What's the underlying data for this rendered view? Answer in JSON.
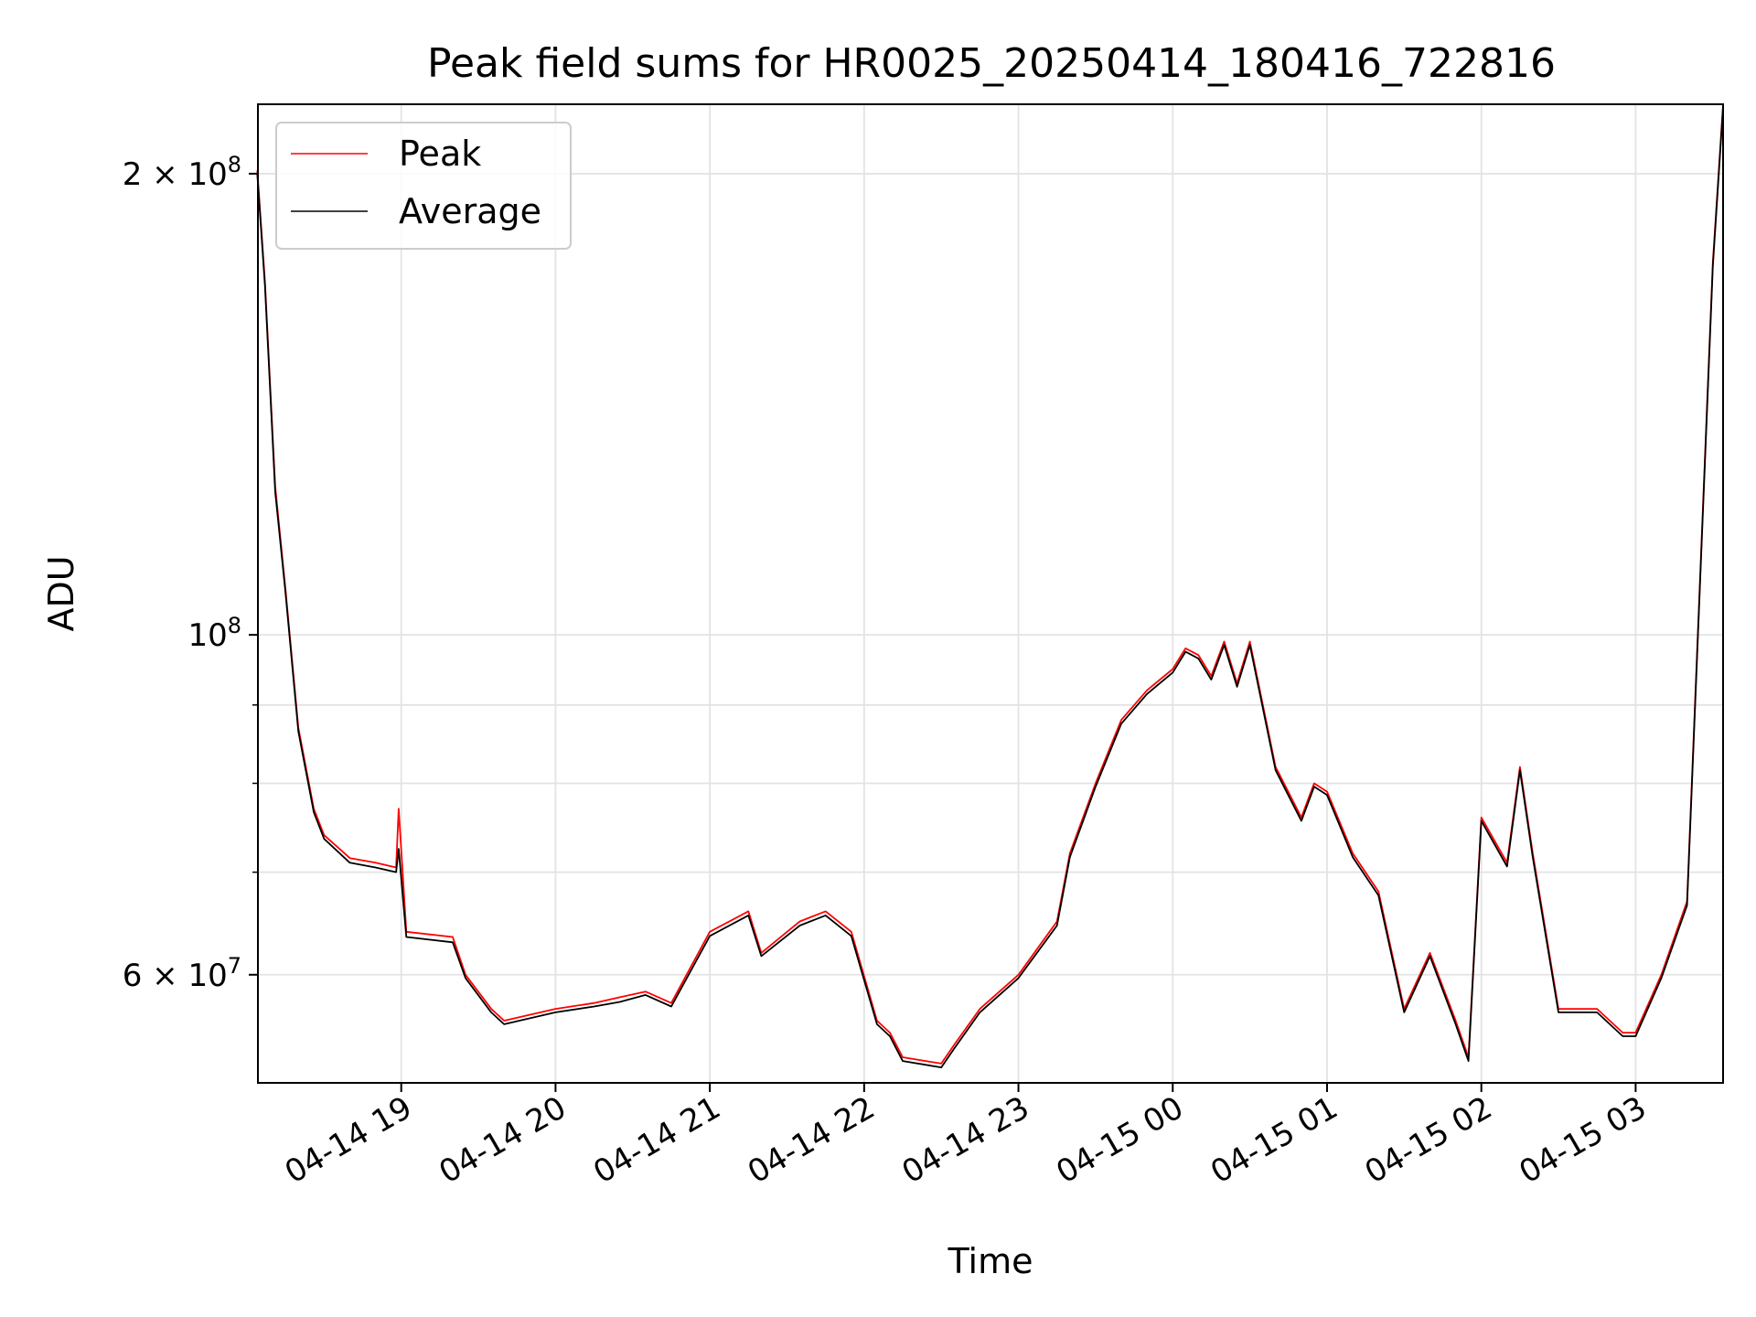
{
  "chart_data": {
    "type": "line",
    "title": "Peak field sums for HR0025_20250414_180416_722816",
    "xlabel": "Time",
    "ylabel": "ADU",
    "yscale": "log",
    "ylim": [
      51000000,
      222000000
    ],
    "xlim": [
      "2025-04-14 18:04:16",
      "2025-04-15 03:34:00"
    ],
    "grid": true,
    "legend_position": "upper-left",
    "x_ticks": [
      "04-14 19",
      "04-14 20",
      "04-14 21",
      "04-14 22",
      "04-14 23",
      "04-15 00",
      "04-15 01",
      "04-15 02",
      "04-15 03"
    ],
    "x_tick_times": [
      "2025-04-14 19:00",
      "2025-04-14 20:00",
      "2025-04-14 21:00",
      "2025-04-14 22:00",
      "2025-04-14 23:00",
      "2025-04-15 00:00",
      "2025-04-15 01:00",
      "2025-04-15 02:00",
      "2025-04-15 03:00"
    ],
    "y_ticks": [
      {
        "value": 200000000,
        "mantissa": "2",
        "exponent": "8"
      },
      {
        "value": 100000000,
        "mantissa": "",
        "exponent": "8"
      },
      {
        "value": 60000000,
        "mantissa": "6",
        "exponent": "7"
      }
    ],
    "y_minor_ticks": [
      90000000,
      80000000,
      70000000
    ],
    "series": [
      {
        "name": "Peak",
        "color": "#ff0000",
        "x": [
          "2025-04-14 18:04",
          "2025-04-14 18:07",
          "2025-04-14 18:11",
          "2025-04-14 18:15",
          "2025-04-14 18:20",
          "2025-04-14 18:26",
          "2025-04-14 18:30",
          "2025-04-14 18:40",
          "2025-04-14 18:50",
          "2025-04-14 18:58",
          "2025-04-14 18:59",
          "2025-04-14 19:02",
          "2025-04-14 19:20",
          "2025-04-14 19:25",
          "2025-04-14 19:35",
          "2025-04-14 19:40",
          "2025-04-14 20:00",
          "2025-04-14 20:15",
          "2025-04-14 20:25",
          "2025-04-14 20:35",
          "2025-04-14 20:45",
          "2025-04-14 21:00",
          "2025-04-14 21:15",
          "2025-04-14 21:20",
          "2025-04-14 21:35",
          "2025-04-14 21:45",
          "2025-04-14 21:55",
          "2025-04-14 22:05",
          "2025-04-14 22:10",
          "2025-04-14 22:15",
          "2025-04-14 22:30",
          "2025-04-14 22:35",
          "2025-04-14 22:45",
          "2025-04-14 23:00",
          "2025-04-14 23:15",
          "2025-04-14 23:20",
          "2025-04-14 23:30",
          "2025-04-14 23:40",
          "2025-04-14 23:50",
          "2025-04-15 00:00",
          "2025-04-15 00:05",
          "2025-04-15 00:10",
          "2025-04-15 00:15",
          "2025-04-15 00:20",
          "2025-04-15 00:25",
          "2025-04-15 00:30",
          "2025-04-15 00:40",
          "2025-04-15 00:50",
          "2025-04-15 00:55",
          "2025-04-15 01:00",
          "2025-04-15 01:10",
          "2025-04-15 01:20",
          "2025-04-15 01:30",
          "2025-04-15 01:40",
          "2025-04-15 01:50",
          "2025-04-15 01:55",
          "2025-04-15 02:00",
          "2025-04-15 02:10",
          "2025-04-15 02:15",
          "2025-04-15 02:20",
          "2025-04-15 02:30",
          "2025-04-15 02:45",
          "2025-04-15 02:55",
          "2025-04-15 03:00",
          "2025-04-15 03:10",
          "2025-04-15 03:20",
          "2025-04-15 03:30",
          "2025-04-15 03:34"
        ],
        "y": [
          201000000,
          170000000,
          125000000,
          107000000,
          87000000,
          77000000,
          74000000,
          71500000,
          71000000,
          70500000,
          77000000,
          64000000,
          63500000,
          60000000,
          57000000,
          56000000,
          57000000,
          57500000,
          58000000,
          58500000,
          57500000,
          64000000,
          66000000,
          62000000,
          65000000,
          66000000,
          64000000,
          56000000,
          55000000,
          53000000,
          52500000,
          54000000,
          57000000,
          60000000,
          65000000,
          72000000,
          80000000,
          88000000,
          92000000,
          95000000,
          98000000,
          97000000,
          94000000,
          99000000,
          93000000,
          99000000,
          82000000,
          76000000,
          80000000,
          79000000,
          72000000,
          68000000,
          57000000,
          62000000,
          56000000,
          53000000,
          76000000,
          71000000,
          82000000,
          72000000,
          57000000,
          57000000,
          55000000,
          55000000,
          60000000,
          67000000,
          175000000,
          222000000
        ]
      },
      {
        "name": "Average",
        "color": "#000000",
        "x": [
          "2025-04-14 18:04",
          "2025-04-14 18:07",
          "2025-04-14 18:11",
          "2025-04-14 18:15",
          "2025-04-14 18:20",
          "2025-04-14 18:26",
          "2025-04-14 18:30",
          "2025-04-14 18:40",
          "2025-04-14 18:50",
          "2025-04-14 18:58",
          "2025-04-14 18:59",
          "2025-04-14 19:02",
          "2025-04-14 19:20",
          "2025-04-14 19:25",
          "2025-04-14 19:35",
          "2025-04-14 19:40",
          "2025-04-14 20:00",
          "2025-04-14 20:15",
          "2025-04-14 20:25",
          "2025-04-14 20:35",
          "2025-04-14 20:45",
          "2025-04-14 21:00",
          "2025-04-14 21:15",
          "2025-04-14 21:20",
          "2025-04-14 21:35",
          "2025-04-14 21:45",
          "2025-04-14 21:55",
          "2025-04-14 22:05",
          "2025-04-14 22:10",
          "2025-04-14 22:15",
          "2025-04-14 22:30",
          "2025-04-14 22:35",
          "2025-04-14 22:45",
          "2025-04-14 23:00",
          "2025-04-14 23:15",
          "2025-04-14 23:20",
          "2025-04-14 23:30",
          "2025-04-14 23:40",
          "2025-04-14 23:50",
          "2025-04-15 00:00",
          "2025-04-15 00:05",
          "2025-04-15 00:10",
          "2025-04-15 00:15",
          "2025-04-15 00:20",
          "2025-04-15 00:25",
          "2025-04-15 00:30",
          "2025-04-15 00:40",
          "2025-04-15 00:50",
          "2025-04-15 00:55",
          "2025-04-15 01:00",
          "2025-04-15 01:10",
          "2025-04-15 01:20",
          "2025-04-15 01:30",
          "2025-04-15 01:40",
          "2025-04-15 01:50",
          "2025-04-15 01:55",
          "2025-04-15 02:00",
          "2025-04-15 02:10",
          "2025-04-15 02:15",
          "2025-04-15 02:20",
          "2025-04-15 02:30",
          "2025-04-15 02:45",
          "2025-04-15 02:55",
          "2025-04-15 03:00",
          "2025-04-15 03:10",
          "2025-04-15 03:20",
          "2025-04-15 03:30",
          "2025-04-15 03:34"
        ],
        "y": [
          200000000,
          169000000,
          124000000,
          106500000,
          86500000,
          76600000,
          73600000,
          71000000,
          70500000,
          70000000,
          72500000,
          63500000,
          63000000,
          59700000,
          56700000,
          55700000,
          56700000,
          57200000,
          57600000,
          58200000,
          57200000,
          63600000,
          65600000,
          61700000,
          64600000,
          65600000,
          63600000,
          55700000,
          54700000,
          52700000,
          52200000,
          53700000,
          56700000,
          59700000,
          64600000,
          71600000,
          79600000,
          87500000,
          91500000,
          94500000,
          97500000,
          96500000,
          93500000,
          98500000,
          92500000,
          98500000,
          81600000,
          75600000,
          79600000,
          78600000,
          71600000,
          67600000,
          56700000,
          61700000,
          55700000,
          52700000,
          75600000,
          70600000,
          81600000,
          71600000,
          56700000,
          56700000,
          54700000,
          54700000,
          59700000,
          66600000,
          174000000,
          221000000
        ]
      }
    ]
  }
}
